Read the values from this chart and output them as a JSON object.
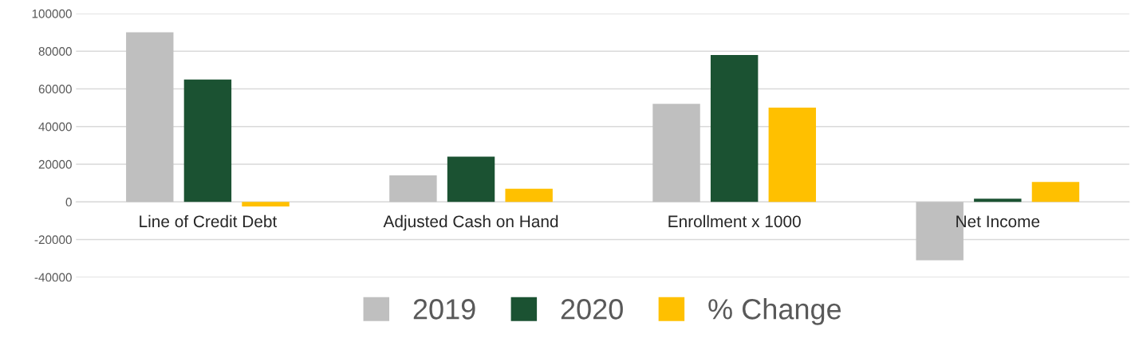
{
  "chart_data": {
    "type": "bar",
    "categories": [
      "Line of Credit Debt",
      "Adjusted Cash on Hand",
      "Enrollment x 1000",
      "Net Income"
    ],
    "series": [
      {
        "name": "2019",
        "color": "#bfbfbf",
        "values": [
          90000,
          14000,
          52000,
          -31000
        ]
      },
      {
        "name": "2020",
        "color": "#1b5232",
        "values": [
          65000,
          24000,
          78000,
          1700
        ]
      },
      {
        "name": "% Change",
        "color": "#ffc000",
        "values": [
          -2500,
          7000,
          50000,
          10600
        ]
      }
    ],
    "ylim": [
      -40000,
      100000
    ],
    "yticks": [
      -40000,
      -20000,
      0,
      20000,
      40000,
      60000,
      80000,
      100000
    ],
    "grid": "y",
    "legend": "bottom"
  }
}
